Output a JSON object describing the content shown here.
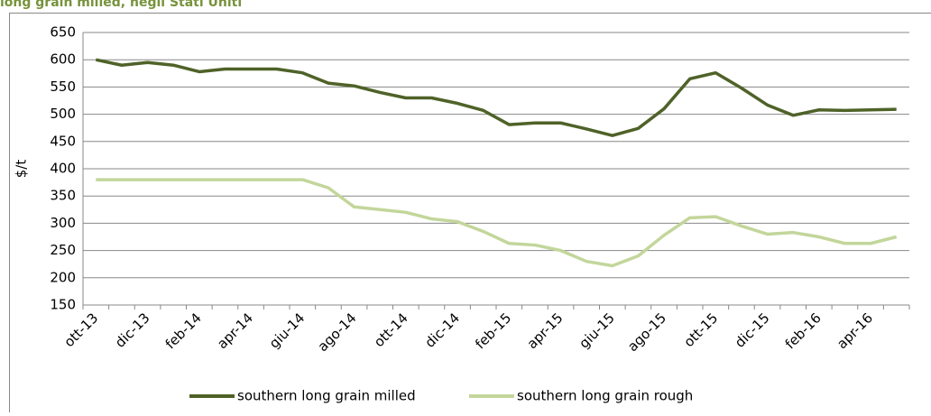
{
  "chart_data": {
    "type": "line",
    "title": "long grain milled, negli Stati Uniti",
    "y_label": "$/t",
    "categories": [
      "ott-13",
      null,
      "dic-13",
      null,
      "feb-14",
      null,
      "apr-14",
      null,
      "giu-14",
      null,
      "ago-14",
      null,
      "ott-14",
      null,
      "dic-14",
      null,
      "feb-15",
      null,
      "apr-15",
      null,
      "giu-15",
      null,
      "ago-15",
      null,
      "ott-15",
      null,
      "dic-15",
      null,
      "feb-16",
      null,
      "apr-16",
      null
    ],
    "series": [
      {
        "name": "southern long grain milled",
        "color": "#4f6228",
        "values": [
          600,
          590,
          595,
          590,
          578,
          583,
          583,
          583,
          576,
          557,
          552,
          540,
          530,
          530,
          520,
          507,
          481,
          484,
          484,
          473,
          461,
          474,
          510,
          565,
          576,
          548,
          517,
          498,
          508,
          507,
          508,
          509
        ]
      },
      {
        "name": "southern long grain rough",
        "color": "#c3d69b",
        "values": [
          380,
          380,
          380,
          380,
          380,
          380,
          380,
          380,
          380,
          365,
          330,
          325,
          320,
          308,
          303,
          285,
          263,
          260,
          250,
          230,
          222,
          240,
          278,
          310,
          312,
          295,
          280,
          283,
          275,
          263,
          263,
          275
        ]
      }
    ],
    "ylim": [
      150,
      650
    ],
    "yticks": [
      150,
      200,
      250,
      300,
      350,
      400,
      450,
      500,
      550,
      600,
      650
    ],
    "grid": true,
    "legend": "bottom"
  }
}
